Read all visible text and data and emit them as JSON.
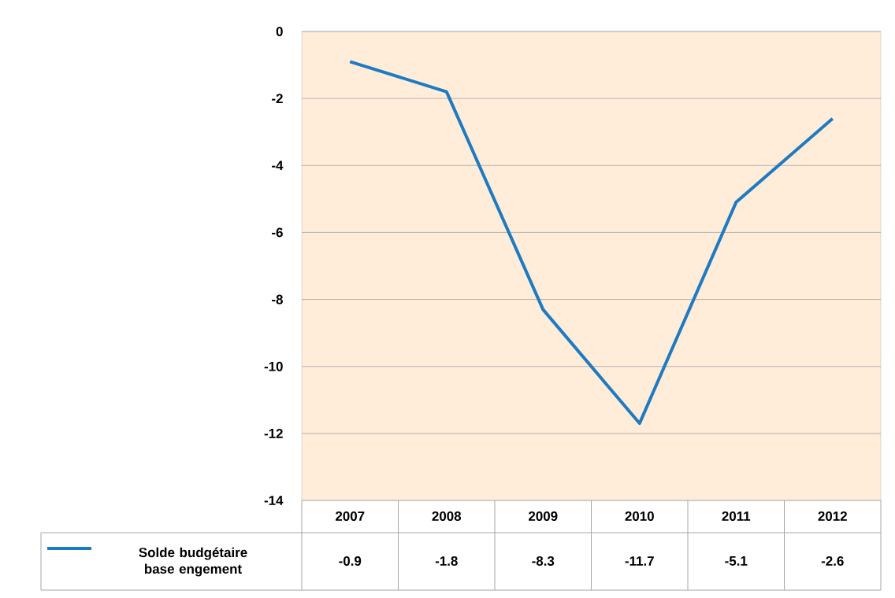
{
  "chart_data": {
    "type": "line",
    "categories": [
      "2007",
      "2008",
      "2009",
      "2010",
      "2011",
      "2012"
    ],
    "series": [
      {
        "name": "Solde budgétaire  base engement",
        "color": "#1f7bc1",
        "values": [
          -0.9,
          -1.8,
          -8.3,
          -11.7,
          -5.1,
          -2.6
        ]
      }
    ],
    "ylim": [
      -14,
      0
    ],
    "yticks": [
      -14,
      -12,
      -10,
      -8,
      -6,
      -4,
      -2,
      0
    ],
    "grid": "y",
    "legend": "bottom left",
    "marker": "none",
    "line_style": "solid",
    "data_labels": true
  }
}
